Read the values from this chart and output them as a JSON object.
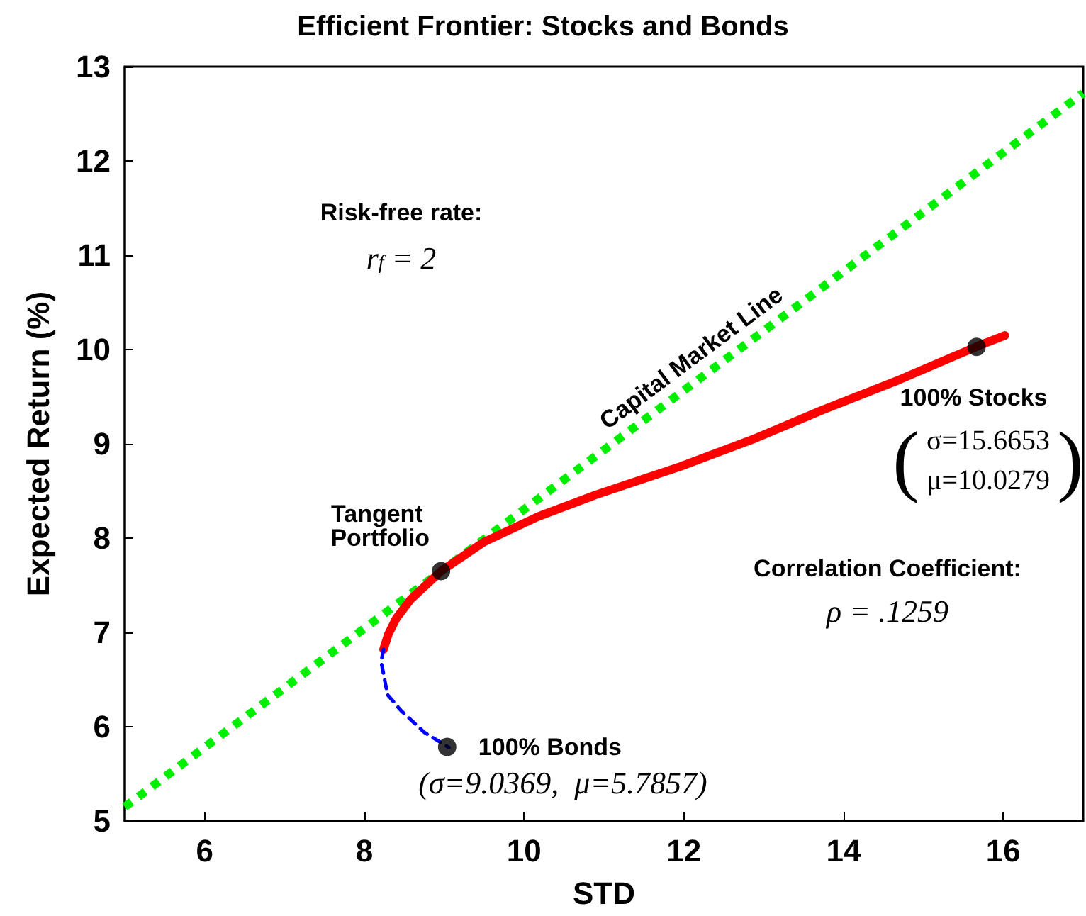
{
  "chart_data": {
    "type": "line",
    "title": "Efficient Frontier: Stocks and Bonds",
    "xlabel": "STD",
    "ylabel": "Expected Return (%)",
    "xlim": [
      5,
      17
    ],
    "xticks": [
      6,
      8,
      10,
      12,
      14,
      16
    ],
    "ylim": [
      5,
      13
    ],
    "yticks": [
      5,
      6,
      7,
      8,
      9,
      10,
      11,
      12,
      13
    ],
    "grid": false,
    "series": [
      {
        "color": "#00ee00",
        "line_style": "dotted",
        "marker": "none",
        "x": [
          5,
          17
        ],
        "values": [
          5.15,
          12.72
        ]
      },
      {
        "color": "#ff0000",
        "line_style": "solid",
        "marker": "none",
        "x": [
          8.24,
          8.3,
          8.4,
          8.58,
          8.96,
          9.5,
          10.18,
          10.9,
          11.96,
          12.9,
          13.74,
          14.7,
          15.69,
          16.02
        ],
        "values": [
          6.82,
          6.98,
          7.15,
          7.35,
          7.65,
          7.96,
          8.23,
          8.46,
          8.76,
          9.06,
          9.36,
          9.68,
          10.04,
          10.15
        ]
      },
      {
        "color": "#0000ff",
        "line_style": "dashed",
        "marker": "none",
        "x": [
          8.24,
          8.21,
          8.29,
          8.46,
          8.75,
          9.06
        ],
        "values": [
          6.82,
          6.69,
          6.34,
          6.17,
          5.94,
          5.78
        ]
      },
      {
        "type": "scatter",
        "color": "#000000",
        "marker": "circle",
        "x": [
          9.0369,
          8.96,
          15.6653
        ],
        "values": [
          5.7857,
          7.65,
          10.0279
        ]
      }
    ],
    "annotations": [
      "Risk-free rate:",
      "r$_{f}$ = 2",
      {
        "text": "Capital Market Line",
        "x": 12.2,
        "y": 9.7
      },
      {
        "text": "Tangent Portfolio",
        "x": 8.96,
        "y": 7.65
      },
      {
        "text": "100% Stocks",
        "x": 15.6653,
        "y": 10.0279
      },
      "(σ=15.6653 μ=10.0279)",
      {
        "text": "100% Bonds",
        "x": 9.0369,
        "y": 5.7857
      },
      "(σ=9.0369,  μ=5.7857)",
      "Correlation Coefficient:",
      "ρ = .1259"
    ]
  }
}
